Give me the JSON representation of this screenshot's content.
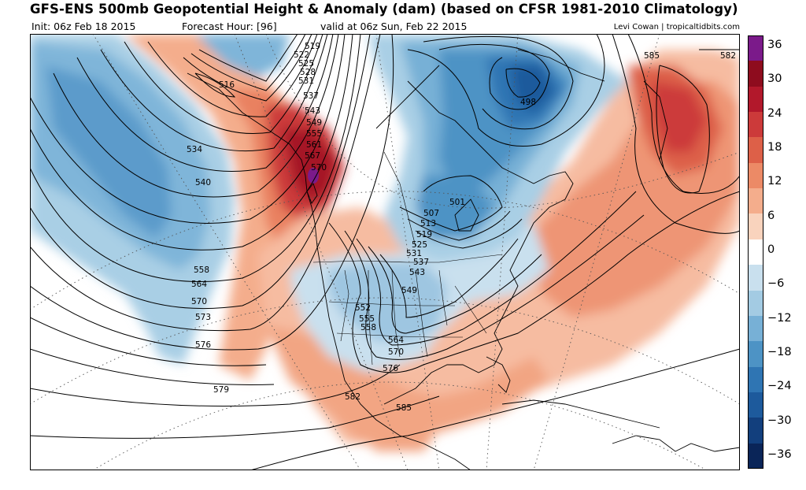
{
  "header": {
    "title": "GFS-ENS 500mb Geopotential Height & Anomaly (dam) (based on CFSR 1981-2010 Climatology)",
    "init": "Init: 06z Feb 18 2015",
    "forecast_hour": "Forecast Hour: [96]",
    "valid": "valid at 06z Sun, Feb 22 2015",
    "credit": "Levi Cowan | tropicaltidbits.com"
  },
  "colorbar": {
    "labels": [
      "36",
      "30",
      "24",
      "18",
      "12",
      "6",
      "0",
      "−6",
      "−12",
      "−18",
      "−24",
      "−30",
      "−36"
    ],
    "colors": [
      "#7b1a8a",
      "#8e0c1e",
      "#b2182b",
      "#cc3a3a",
      "#dd6048",
      "#ec8a66",
      "#f4ad8c",
      "#f9d3bd",
      "#ffffff",
      "#c9e0ee",
      "#a3cbe3",
      "#77b0d6",
      "#4d93c5",
      "#2f75b3",
      "#1d5a9c",
      "#123f7d",
      "#0a2558"
    ]
  },
  "map": {
    "contour_labels": [
      "519",
      "522",
      "525",
      "528",
      "531",
      "537",
      "543",
      "549",
      "555",
      "561",
      "567",
      "570",
      "516",
      "534",
      "540",
      "558",
      "564",
      "570",
      "573",
      "576",
      "579",
      "582",
      "585",
      "585",
      "582",
      "498",
      "501",
      "507",
      "513",
      "519",
      "525",
      "531",
      "537",
      "543",
      "549",
      "552",
      "555",
      "558",
      "564",
      "570",
      "576"
    ]
  }
}
